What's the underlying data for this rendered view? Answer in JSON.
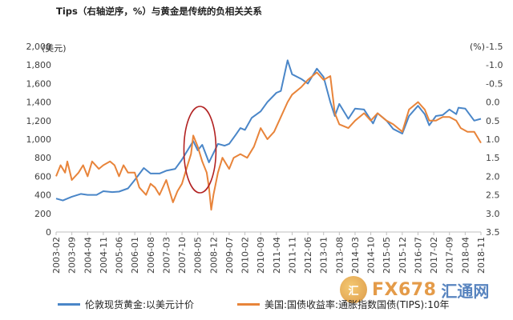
{
  "chart_data": {
    "type": "line",
    "title": "Tips（右轴逆序，%）与黄金是传统的负相关关系",
    "left_unit": "(美元)",
    "right_unit": "(%)",
    "y_left": {
      "min": 0,
      "max": 2000,
      "ticks": [
        "0",
        "200",
        "400",
        "600",
        "800",
        "1,000",
        "1,200",
        "1,400",
        "1,600",
        "1,800",
        "2,000"
      ]
    },
    "y_right": {
      "min": -1.5,
      "max": 3.5,
      "inverted": true,
      "ticks": [
        "-1.5",
        "-1.0",
        "-0.5",
        "0.0",
        "0.5",
        "1.0",
        "1.5",
        "2.0",
        "2.5",
        "3.0",
        "3.5"
      ]
    },
    "x_ticks": [
      "2003-02",
      "2003-09",
      "2004-04",
      "2004-11",
      "2005-06",
      "2006-01",
      "2006-08",
      "2007-03",
      "2007-10",
      "2008-05",
      "2008-12",
      "2009-07",
      "2010-02",
      "2010-09",
      "2011-04",
      "2011-11",
      "2012-06",
      "2013-01",
      "2013-08",
      "2014-03",
      "2014-10",
      "2015-05",
      "2015-12",
      "2016-07",
      "2017-02",
      "2017-09",
      "2018-04",
      "2018-11"
    ],
    "x_range": [
      "2003-02",
      "2018-11"
    ],
    "grid": false,
    "legend_position": "bottom",
    "series": [
      {
        "name": "伦敦现货黄金:以美元计价",
        "axis": "left",
        "color": "#4a86c8",
        "points": [
          [
            "2003-02",
            360
          ],
          [
            "2003-05",
            340
          ],
          [
            "2003-09",
            380
          ],
          [
            "2004-01",
            410
          ],
          [
            "2004-04",
            400
          ],
          [
            "2004-08",
            400
          ],
          [
            "2004-11",
            440
          ],
          [
            "2005-03",
            430
          ],
          [
            "2005-06",
            435
          ],
          [
            "2005-10",
            470
          ],
          [
            "2006-01",
            560
          ],
          [
            "2006-05",
            690
          ],
          [
            "2006-08",
            630
          ],
          [
            "2006-12",
            630
          ],
          [
            "2007-03",
            660
          ],
          [
            "2007-07",
            680
          ],
          [
            "2007-10",
            780
          ],
          [
            "2008-01",
            900
          ],
          [
            "2008-03",
            980
          ],
          [
            "2008-05",
            880
          ],
          [
            "2008-07",
            940
          ],
          [
            "2008-10",
            750
          ],
          [
            "2008-12",
            850
          ],
          [
            "2009-02",
            950
          ],
          [
            "2009-05",
            930
          ],
          [
            "2009-07",
            950
          ],
          [
            "2009-10",
            1050
          ],
          [
            "2009-12",
            1120
          ],
          [
            "2010-02",
            1100
          ],
          [
            "2010-05",
            1230
          ],
          [
            "2010-09",
            1300
          ],
          [
            "2010-12",
            1400
          ],
          [
            "2011-04",
            1500
          ],
          [
            "2011-06",
            1520
          ],
          [
            "2011-09",
            1850
          ],
          [
            "2011-11",
            1700
          ],
          [
            "2012-03",
            1650
          ],
          [
            "2012-06",
            1600
          ],
          [
            "2012-10",
            1760
          ],
          [
            "2013-01",
            1670
          ],
          [
            "2013-04",
            1400
          ],
          [
            "2013-06",
            1250
          ],
          [
            "2013-08",
            1380
          ],
          [
            "2013-12",
            1220
          ],
          [
            "2014-03",
            1330
          ],
          [
            "2014-07",
            1320
          ],
          [
            "2014-11",
            1170
          ],
          [
            "2015-01",
            1280
          ],
          [
            "2015-05",
            1200
          ],
          [
            "2015-08",
            1110
          ],
          [
            "2015-12",
            1060
          ],
          [
            "2016-03",
            1250
          ],
          [
            "2016-07",
            1360
          ],
          [
            "2016-10",
            1270
          ],
          [
            "2016-12",
            1150
          ],
          [
            "2017-03",
            1250
          ],
          [
            "2017-06",
            1260
          ],
          [
            "2017-09",
            1320
          ],
          [
            "2017-12",
            1270
          ],
          [
            "2018-01",
            1340
          ],
          [
            "2018-04",
            1330
          ],
          [
            "2018-08",
            1200
          ],
          [
            "2018-11",
            1220
          ]
        ]
      },
      {
        "name": "美国:国债收益率:通胀指数国债(TIPS):10年",
        "axis": "right",
        "color": "#e8843a",
        "points": [
          [
            "2003-02",
            2.0
          ],
          [
            "2003-04",
            1.7
          ],
          [
            "2003-06",
            1.9
          ],
          [
            "2003-07",
            1.6
          ],
          [
            "2003-09",
            2.1
          ],
          [
            "2003-12",
            1.9
          ],
          [
            "2004-02",
            1.7
          ],
          [
            "2004-04",
            2.0
          ],
          [
            "2004-06",
            1.6
          ],
          [
            "2004-09",
            1.8
          ],
          [
            "2004-11",
            1.7
          ],
          [
            "2005-02",
            1.6
          ],
          [
            "2005-04",
            1.7
          ],
          [
            "2005-06",
            2.0
          ],
          [
            "2005-08",
            1.7
          ],
          [
            "2005-10",
            1.9
          ],
          [
            "2006-01",
            1.9
          ],
          [
            "2006-03",
            2.3
          ],
          [
            "2006-06",
            2.5
          ],
          [
            "2006-08",
            2.2
          ],
          [
            "2006-10",
            2.3
          ],
          [
            "2006-12",
            2.5
          ],
          [
            "2007-03",
            2.1
          ],
          [
            "2007-06",
            2.7
          ],
          [
            "2007-08",
            2.4
          ],
          [
            "2007-10",
            2.2
          ],
          [
            "2007-12",
            1.8
          ],
          [
            "2008-02",
            1.4
          ],
          [
            "2008-03",
            0.9
          ],
          [
            "2008-05",
            1.2
          ],
          [
            "2008-07",
            1.6
          ],
          [
            "2008-09",
            1.9
          ],
          [
            "2008-10",
            2.3
          ],
          [
            "2008-11",
            2.9
          ],
          [
            "2008-12",
            2.5
          ],
          [
            "2009-02",
            1.9
          ],
          [
            "2009-04",
            1.5
          ],
          [
            "2009-07",
            1.8
          ],
          [
            "2009-09",
            1.5
          ],
          [
            "2009-12",
            1.4
          ],
          [
            "2010-03",
            1.5
          ],
          [
            "2010-06",
            1.2
          ],
          [
            "2010-09",
            0.7
          ],
          [
            "2010-12",
            1.0
          ],
          [
            "2011-03",
            0.8
          ],
          [
            "2011-06",
            0.4
          ],
          [
            "2011-09",
            0.0
          ],
          [
            "2011-11",
            -0.2
          ],
          [
            "2012-03",
            -0.4
          ],
          [
            "2012-06",
            -0.6
          ],
          [
            "2012-10",
            -0.8
          ],
          [
            "2013-01",
            -0.6
          ],
          [
            "2013-04",
            -0.7
          ],
          [
            "2013-06",
            0.3
          ],
          [
            "2013-08",
            0.6
          ],
          [
            "2013-12",
            0.7
          ],
          [
            "2014-03",
            0.5
          ],
          [
            "2014-07",
            0.3
          ],
          [
            "2014-10",
            0.5
          ],
          [
            "2015-01",
            0.3
          ],
          [
            "2015-05",
            0.5
          ],
          [
            "2015-08",
            0.6
          ],
          [
            "2015-12",
            0.8
          ],
          [
            "2016-03",
            0.2
          ],
          [
            "2016-07",
            0.0
          ],
          [
            "2016-10",
            0.2
          ],
          [
            "2016-12",
            0.5
          ],
          [
            "2017-03",
            0.5
          ],
          [
            "2017-06",
            0.4
          ],
          [
            "2017-09",
            0.4
          ],
          [
            "2017-12",
            0.5
          ],
          [
            "2018-02",
            0.7
          ],
          [
            "2018-05",
            0.8
          ],
          [
            "2018-08",
            0.8
          ],
          [
            "2018-10",
            1.0
          ],
          [
            "2018-11",
            1.1
          ]
        ]
      }
    ],
    "annotation": "ellipse around 2008 financial crisis"
  },
  "watermark": {
    "logo_text": "汇",
    "brand": "FX678",
    "brand2": "汇通网"
  }
}
